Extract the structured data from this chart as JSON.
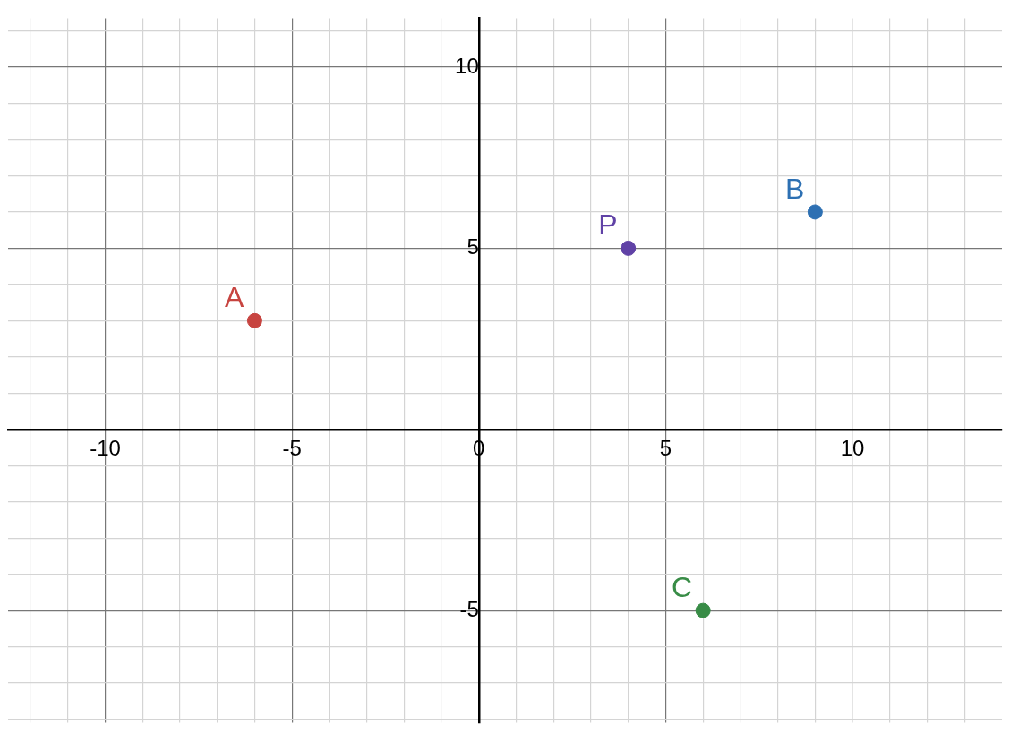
{
  "chart_data": {
    "type": "scatter",
    "series": [
      {
        "name": "A",
        "color": "#c74440",
        "x": [
          -6
        ],
        "values": [
          3
        ]
      },
      {
        "name": "B",
        "color": "#2d70b3",
        "x": [
          9
        ],
        "values": [
          6
        ]
      },
      {
        "name": "C",
        "color": "#388c46",
        "x": [
          6
        ],
        "values": [
          -5
        ]
      },
      {
        "name": "P",
        "color": "#6042a6",
        "x": [
          4
        ],
        "values": [
          5
        ]
      }
    ],
    "xlim": [
      -12.6,
      14
    ],
    "ylim": [
      -8.1,
      11.35
    ],
    "xticks": [
      {
        "value": -12,
        "label": null
      },
      {
        "value": -11,
        "label": null
      },
      -10,
      {
        "value": -9,
        "label": null
      },
      {
        "value": -8,
        "label": null
      },
      {
        "value": -7,
        "label": null
      },
      {
        "value": -6,
        "label": null
      },
      -5,
      {
        "value": -4,
        "label": null
      },
      {
        "value": -3,
        "label": null
      },
      {
        "value": -2,
        "label": null
      },
      {
        "value": -1,
        "label": null
      },
      0,
      {
        "value": 1,
        "label": null
      },
      {
        "value": 2,
        "label": null
      },
      {
        "value": 3,
        "label": null
      },
      {
        "value": 4,
        "label": null
      },
      5,
      {
        "value": 6,
        "label": null
      },
      {
        "value": 7,
        "label": null
      },
      {
        "value": 8,
        "label": null
      },
      {
        "value": 9,
        "label": null
      },
      10,
      {
        "value": 11,
        "label": null
      },
      {
        "value": 12,
        "label": null
      },
      {
        "value": 13,
        "label": null
      }
    ],
    "yticks": [
      {
        "value": -8,
        "label": null
      },
      {
        "value": -7,
        "label": null
      },
      {
        "value": -6,
        "label": null
      },
      -5,
      {
        "value": -4,
        "label": null
      },
      {
        "value": -3,
        "label": null
      },
      {
        "value": -2,
        "label": null
      },
      {
        "value": -1,
        "label": null
      },
      {
        "value": 0,
        "label": null
      },
      {
        "value": 1,
        "label": null
      },
      {
        "value": 2,
        "label": null
      },
      {
        "value": 3,
        "label": null
      },
      {
        "value": 4,
        "label": null
      },
      5,
      {
        "value": 6,
        "label": null
      },
      {
        "value": 7,
        "label": null
      },
      {
        "value": 8,
        "label": null
      },
      {
        "value": 9,
        "label": null
      },
      10,
      {
        "value": 11,
        "label": null
      }
    ],
    "grid": true,
    "marker": "circle",
    "legend": false
  }
}
